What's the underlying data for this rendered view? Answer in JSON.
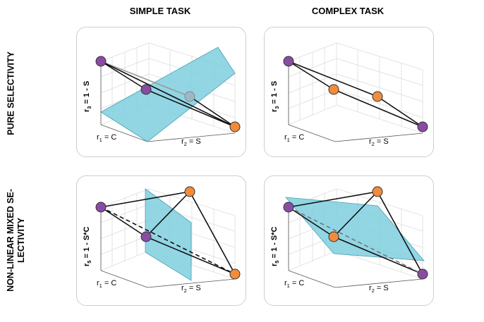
{
  "columns": {
    "simple": "SIMPLE TASK",
    "complex": "COMPLEX TASK"
  },
  "rows": {
    "pure_line1": "PURE SELECTIVITY",
    "mixed_line1": "NON-LINEAR MIXED SE-",
    "mixed_line2": "LECTIVITY"
  },
  "axes": {
    "r1_label": "r",
    "r1_sub": "1",
    "r1_eq": " = C",
    "r2_label": "r",
    "r2_sub": "2",
    "r2_eq": " = S",
    "r3_label": "r",
    "r3_sub": "3",
    "r3_eq": " = 1 - S",
    "r5_label": "r",
    "r5_sub": "5",
    "r5_eq": " = 1 - S*C"
  },
  "colors": {
    "purple": "#8a4ca3",
    "orange": "#f28c3b",
    "plane": "#7fcfdf",
    "plane_edge": "#4a9fb3",
    "grid": "#dcdcdc",
    "panel_border": "#cfcfcf"
  }
}
